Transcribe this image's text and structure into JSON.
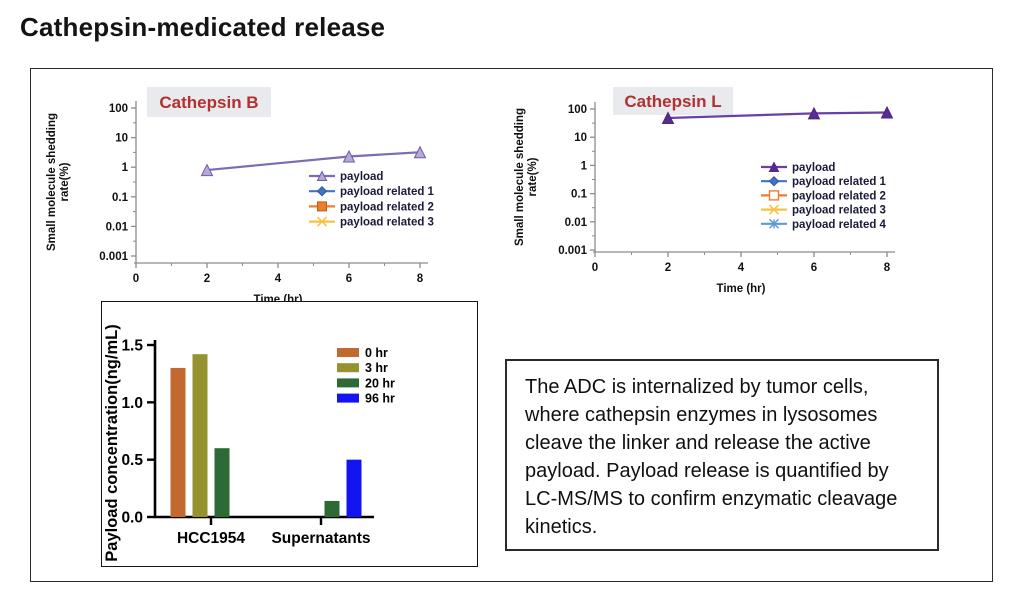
{
  "page": {
    "title": "Cathepsin-medicated release",
    "background": "#ffffff"
  },
  "description_box": {
    "text": "The ADC is internalized by tumor cells, where cathepsin enzymes in lysosomes cleave the linker and release the active payload. Payload release is quantified by LC-MS/MS to confirm enzymatic cleavage kinetics."
  },
  "chart_data": [
    {
      "id": "cathepsin-b",
      "type": "line",
      "title": "Cathepsin B",
      "title_color": "#b23030",
      "title_bg": "#e9eaed",
      "xlabel": "Time (hr)",
      "ylabel": "Small molecule shedding rate(%)",
      "ylabel_lines": [
        "Small molecule shedding",
        "rate(%)"
      ],
      "x_ticks": [
        0,
        2,
        4,
        6,
        8
      ],
      "y_ticks": [
        100,
        10,
        1,
        0.1,
        0.01,
        0.001
      ],
      "y_scale": "log",
      "xlim": [
        0,
        8
      ],
      "ylim": [
        0.001,
        100
      ],
      "grid": false,
      "axis_color": "#8c8c8c",
      "legend_position": "center-right",
      "legend_text_color": "#1b1b38",
      "series": [
        {
          "name": "payload",
          "marker": "triangle",
          "line_color": "#7e6bb0",
          "marker_fill": "#b7a8d8",
          "marker_stroke": "#6e5aa8",
          "x": [
            2,
            6,
            8
          ],
          "y": [
            0.8,
            2.3,
            3.2
          ]
        },
        {
          "name": "payload related 1",
          "marker": "diamond",
          "line_color": "#4472c4",
          "marker_fill": "#4472c4",
          "marker_stroke": "#2f5597",
          "x": [],
          "y": []
        },
        {
          "name": "payload related 2",
          "marker": "square",
          "line_color": "#ed7d31",
          "marker_fill": "#ed7d31",
          "marker_stroke": "#c55a11",
          "x": [],
          "y": []
        },
        {
          "name": "payload related 3",
          "marker": "x",
          "line_color": "#f6c244",
          "marker_fill": "#f6c244",
          "marker_stroke": "#f6c244",
          "x": [],
          "y": []
        }
      ]
    },
    {
      "id": "cathepsin-l",
      "type": "line",
      "title": "Cathepsin L",
      "title_color": "#b23030",
      "title_bg": "#e9eaed",
      "xlabel": "Time (hr)",
      "ylabel": "Small molecule shedding rate(%)",
      "ylabel_lines": [
        "Small molecule shedding",
        "rate(%)"
      ],
      "x_ticks": [
        0,
        2,
        4,
        6,
        8
      ],
      "y_ticks": [
        100,
        10,
        1,
        0.1,
        0.01,
        0.001
      ],
      "y_scale": "log",
      "xlim": [
        0,
        8
      ],
      "ylim": [
        0.001,
        100
      ],
      "grid": false,
      "axis_color": "#8c8c8c",
      "legend_position": "center-right",
      "legend_text_color": "#1b1b38",
      "series": [
        {
          "name": "payload",
          "marker": "triangle",
          "line_color": "#6a3fa6",
          "marker_fill": "#582c90",
          "marker_stroke": "#4e2683",
          "x": [
            2,
            6,
            8
          ],
          "y": [
            48,
            70,
            75
          ]
        },
        {
          "name": "payload related 1",
          "marker": "diamond",
          "line_color": "#4472c4",
          "marker_fill": "#4472c4",
          "marker_stroke": "#2f5597",
          "x": [],
          "y": []
        },
        {
          "name": "payload related 2",
          "marker": "square-open",
          "line_color": "#ed7d31",
          "marker_fill": "#ffffff",
          "marker_stroke": "#ed7d31",
          "x": [],
          "y": []
        },
        {
          "name": "payload related 3",
          "marker": "x",
          "line_color": "#f6c244",
          "marker_fill": "#f6c244",
          "marker_stroke": "#f6c244",
          "x": [],
          "y": []
        },
        {
          "name": "payload related 4",
          "marker": "asterisk",
          "line_color": "#5b9bd5",
          "marker_fill": "#5b9bd5",
          "marker_stroke": "#5b9bd5",
          "x": [],
          "y": []
        }
      ]
    },
    {
      "id": "payload-concentration",
      "type": "bar",
      "title": "",
      "xlabel": "",
      "ylabel": "Payload concentration(ng/mL)",
      "categories": [
        "HCC1954",
        "Supernatants"
      ],
      "y_ticks": [
        0,
        0.5,
        1,
        1.5
      ],
      "ylim": [
        0,
        1.5
      ],
      "grid": false,
      "axis_color": "#000000",
      "legend_position": "top-right",
      "legend_text_color": "#000000",
      "series": [
        {
          "name": "0 hr",
          "color": "#c1692e",
          "values": [
            1.3,
            0
          ]
        },
        {
          "name": "3 hr",
          "color": "#96922f",
          "values": [
            1.42,
            0
          ]
        },
        {
          "name": "20 hr",
          "color": "#2d6a35",
          "values": [
            0.6,
            0.14
          ]
        },
        {
          "name": "96 hr",
          "color": "#1414f0",
          "values": [
            0,
            0.5
          ]
        }
      ]
    }
  ]
}
